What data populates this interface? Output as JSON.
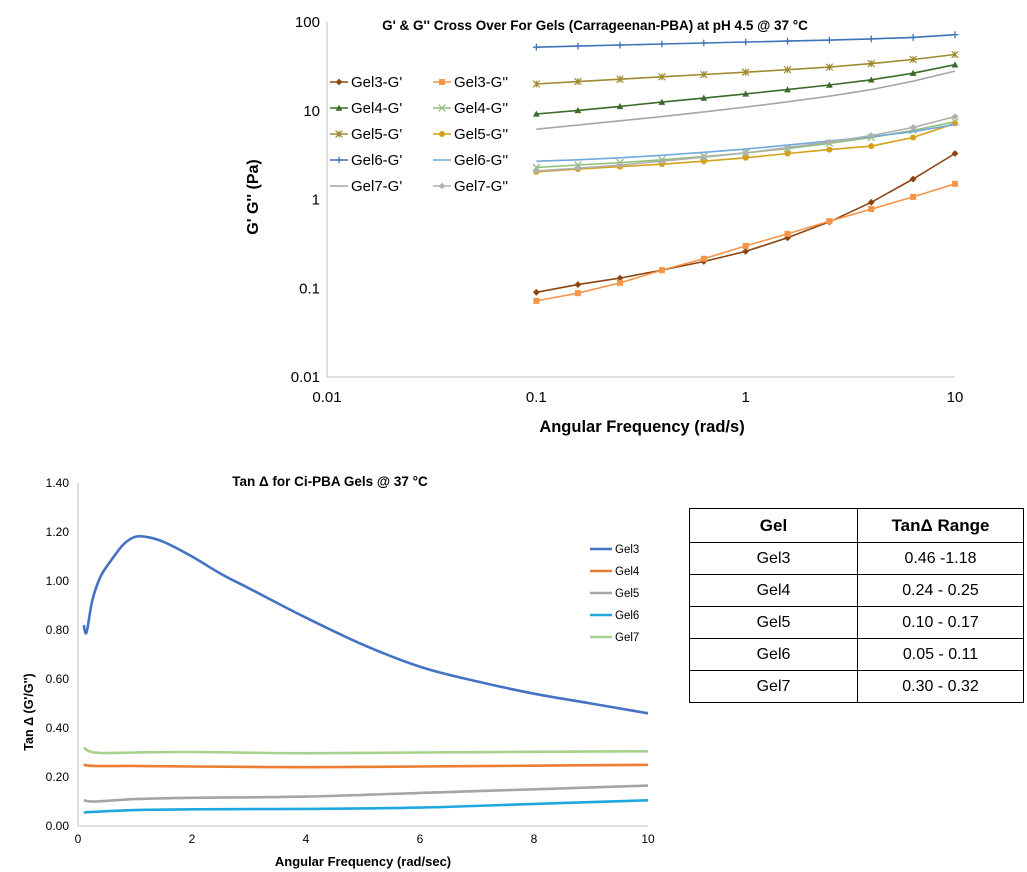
{
  "chart_data": [
    {
      "type": "line",
      "title": "G' & G'' Cross Over For Gels (Carrageenan-PBA) at pH 4.5 @ 37 °C",
      "xlabel": "Angular Frequency (rad/s)",
      "ylabel": "G' G'' (Pa)",
      "x_scale": "log",
      "y_scale": "log",
      "xlim": [
        0.01,
        10
      ],
      "ylim": [
        0.01,
        100
      ],
      "x_ticks": [
        "0.01",
        "0.1",
        "1",
        "10"
      ],
      "y_ticks": [
        "0.01",
        "0.1",
        "1",
        "10",
        "100"
      ],
      "grid": "none",
      "legend_position": "top-left",
      "x": [
        0.1,
        0.158,
        0.251,
        0.398,
        0.631,
        1,
        1.585,
        2.512,
        3.981,
        6.31,
        10
      ],
      "series": [
        {
          "name": "Gel3-G'",
          "color": "#8b4513",
          "marker": "diamond",
          "values": [
            0.09,
            0.11,
            0.13,
            0.16,
            0.2,
            0.26,
            0.37,
            0.56,
            0.93,
            1.7,
            3.3
          ]
        },
        {
          "name": "Gel3-G''",
          "color": "#f4954a",
          "marker": "square",
          "values": [
            0.072,
            0.088,
            0.115,
            0.16,
            0.215,
            0.3,
            0.41,
            0.57,
            0.78,
            1.07,
            1.5
          ]
        },
        {
          "name": "Gel4-G'",
          "color": "#3a6b2a",
          "marker": "triangle",
          "values": [
            9.2,
            10.1,
            11.2,
            12.5,
            13.9,
            15.5,
            17.3,
            19.5,
            22.3,
            26.5,
            33
          ]
        },
        {
          "name": "Gel4-G''",
          "color": "#8fc07a",
          "marker": "x",
          "values": [
            2.3,
            2.45,
            2.6,
            2.8,
            3.05,
            3.35,
            3.75,
            4.3,
            5.0,
            6.0,
            7.5
          ]
        },
        {
          "name": "Gel5-G'",
          "color": "#a08a2e",
          "marker": "star",
          "values": [
            20,
            21.3,
            22.7,
            24.1,
            25.6,
            27.2,
            29,
            31,
            34,
            37.8,
            43
          ]
        },
        {
          "name": "Gel5-G''",
          "color": "#d4a017",
          "marker": "circle",
          "values": [
            2.05,
            2.2,
            2.35,
            2.5,
            2.7,
            2.95,
            3.3,
            3.65,
            4.0,
            5.0,
            7.2
          ]
        },
        {
          "name": "Gel6-G'",
          "color": "#3d73b8",
          "marker": "plus",
          "values": [
            52,
            53.5,
            55,
            56.5,
            58,
            59.5,
            61,
            62.5,
            64.5,
            67,
            72
          ]
        },
        {
          "name": "Gel6-G''",
          "color": "#6fa8dc",
          "marker": "none",
          "values": [
            2.7,
            2.8,
            2.95,
            3.15,
            3.4,
            3.7,
            4.1,
            4.55,
            5.1,
            5.8,
            7.0
          ]
        },
        {
          "name": "Gel7-G'",
          "color": "#a6a6a6",
          "marker": "none",
          "values": [
            6.2,
            6.9,
            7.7,
            8.6,
            9.7,
            11,
            12.6,
            14.6,
            17.3,
            21.5,
            28
          ]
        },
        {
          "name": "Gel7-G''",
          "color": "#b0b0b0",
          "marker": "diamond",
          "values": [
            2.1,
            2.25,
            2.45,
            2.7,
            3.0,
            3.35,
            3.85,
            4.45,
            5.25,
            6.5,
            8.6
          ]
        }
      ]
    },
    {
      "type": "line",
      "title": "Tan Δ for Ci-PBA Gels @ 37 °C",
      "xlabel": "Angular Frequency (rad/sec)",
      "ylabel": "Tan Δ (G'/G'')",
      "xlim": [
        0,
        10
      ],
      "ylim": [
        0,
        1.4
      ],
      "x_ticks": [
        "0",
        "2",
        "4",
        "6",
        "8",
        "10"
      ],
      "y_ticks": [
        "0.00",
        "0.20",
        "0.40",
        "0.60",
        "0.80",
        "1.00",
        "1.20",
        "1.40"
      ],
      "grid": "none",
      "legend_position": "right",
      "series": [
        {
          "name": "Gel3",
          "color": "#4472c4",
          "x": [
            0.1,
            0.15,
            0.25,
            0.4,
            0.6,
            0.8,
            1.0,
            1.2,
            1.5,
            2.0,
            2.5,
            3.0,
            4.0,
            5.0,
            6.0,
            7.0,
            8.0,
            9.0,
            10.0
          ],
          "values": [
            0.82,
            0.79,
            0.92,
            1.02,
            1.09,
            1.15,
            1.18,
            1.18,
            1.16,
            1.1,
            1.03,
            0.97,
            0.85,
            0.74,
            0.65,
            0.59,
            0.54,
            0.5,
            0.46
          ]
        },
        {
          "name": "Gel4",
          "color": "#ed7d31",
          "x": [
            0.1,
            0.3,
            1.0,
            2.0,
            4.0,
            6.0,
            8.0,
            10.0
          ],
          "values": [
            0.25,
            0.245,
            0.245,
            0.243,
            0.24,
            0.243,
            0.246,
            0.25
          ]
        },
        {
          "name": "Gel5",
          "color": "#a5a5a5",
          "x": [
            0.1,
            0.3,
            1.0,
            2.0,
            4.0,
            6.0,
            8.0,
            10.0
          ],
          "values": [
            0.105,
            0.1,
            0.11,
            0.115,
            0.12,
            0.135,
            0.15,
            0.165
          ]
        },
        {
          "name": "Gel6",
          "color": "#1fa8e0",
          "x": [
            0.1,
            0.3,
            1.0,
            2.0,
            4.0,
            6.0,
            8.0,
            10.0
          ],
          "values": [
            0.055,
            0.058,
            0.065,
            0.068,
            0.07,
            0.075,
            0.09,
            0.105
          ]
        },
        {
          "name": "Gel7",
          "color": "#a9d18e",
          "x": [
            0.1,
            0.2,
            0.4,
            1.0,
            2.0,
            4.0,
            6.0,
            8.0,
            10.0
          ],
          "values": [
            0.32,
            0.305,
            0.298,
            0.3,
            0.302,
            0.297,
            0.3,
            0.303,
            0.305
          ]
        }
      ]
    }
  ],
  "table": {
    "headers": [
      "Gel",
      "TanΔ Range"
    ],
    "rows": [
      [
        "Gel3",
        "0.46 -1.18"
      ],
      [
        "Gel4",
        "0.24 - 0.25"
      ],
      [
        "Gel5",
        "0.10 - 0.17"
      ],
      [
        "Gel6",
        "0.05 - 0.11"
      ],
      [
        "Gel7",
        "0.30 - 0.32"
      ]
    ]
  }
}
